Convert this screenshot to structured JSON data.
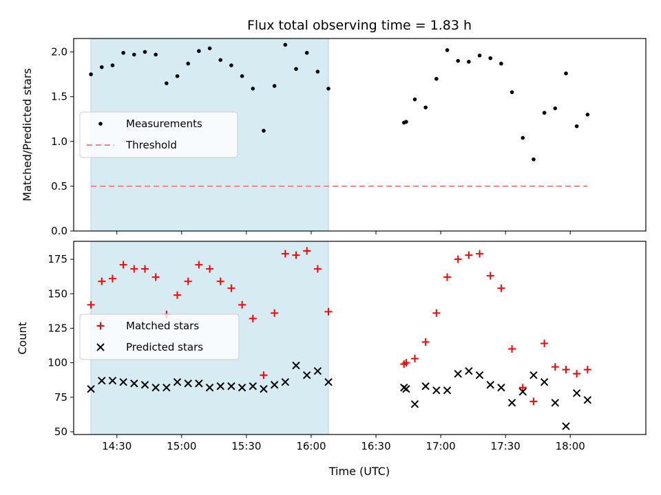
{
  "title": "Flux total observing time = 1.83 h",
  "colors": {
    "shade": "#add8e6",
    "measurement": "#000000",
    "threshold": "#ff7f7f",
    "matched": "#ff0000",
    "predicted": "#000000",
    "axes": "#000000"
  },
  "chart_data": [
    {
      "type": "scatter",
      "ylabel": "Matched/Predicted stars",
      "xlim": [
        "14:10",
        "18:35"
      ],
      "ylim": [
        0,
        2.15
      ],
      "y_ticks": [
        "0.0",
        "0.5",
        "1.0",
        "1.5",
        "2.0"
      ],
      "legend_position": "center-left",
      "shaded_interval": [
        "14:18",
        "16:08"
      ],
      "series": [
        {
          "name": "Measurements",
          "marker": "dot",
          "points": [
            [
              "14:18",
              1.75
            ],
            [
              "14:23",
              1.83
            ],
            [
              "14:28",
              1.85
            ],
            [
              "14:33",
              1.99
            ],
            [
              "14:38",
              1.97
            ],
            [
              "14:43",
              2.0
            ],
            [
              "14:48",
              1.97
            ],
            [
              "14:53",
              1.65
            ],
            [
              "14:58",
              1.73
            ],
            [
              "15:03",
              1.87
            ],
            [
              "15:08",
              2.01
            ],
            [
              "15:13",
              2.04
            ],
            [
              "15:18",
              1.91
            ],
            [
              "15:23",
              1.85
            ],
            [
              "15:28",
              1.73
            ],
            [
              "15:33",
              1.59
            ],
            [
              "15:38",
              1.12
            ],
            [
              "15:43",
              1.62
            ],
            [
              "15:48",
              2.08
            ],
            [
              "15:53",
              1.81
            ],
            [
              "15:58",
              1.99
            ],
            [
              "16:03",
              1.78
            ],
            [
              "16:08",
              1.59
            ],
            [
              "16:43",
              1.21
            ],
            [
              "16:44",
              1.22
            ],
            [
              "16:48",
              1.47
            ],
            [
              "16:53",
              1.38
            ],
            [
              "16:58",
              1.7
            ],
            [
              "17:03",
              2.02
            ],
            [
              "17:08",
              1.9
            ],
            [
              "17:13",
              1.89
            ],
            [
              "17:18",
              1.96
            ],
            [
              "17:23",
              1.93
            ],
            [
              "17:28",
              1.87
            ],
            [
              "17:33",
              1.55
            ],
            [
              "17:38",
              1.04
            ],
            [
              "17:43",
              0.8
            ],
            [
              "17:48",
              1.32
            ],
            [
              "17:53",
              1.37
            ],
            [
              "17:58",
              1.76
            ],
            [
              "18:03",
              1.17
            ],
            [
              "18:08",
              1.3
            ]
          ]
        },
        {
          "name": "Threshold",
          "style": "dashed",
          "x": [
            "14:18",
            "18:08"
          ],
          "values": [
            0.5,
            0.5
          ]
        }
      ]
    },
    {
      "type": "scatter",
      "xlabel": "Time (UTC)",
      "ylabel": "Count",
      "xlim": [
        "14:10",
        "18:35"
      ],
      "ylim": [
        48,
        188
      ],
      "y_ticks": [
        "50",
        "75",
        "100",
        "125",
        "150",
        "175"
      ],
      "x_ticks": [
        "14:30",
        "15:00",
        "15:30",
        "16:00",
        "16:30",
        "17:00",
        "17:30",
        "18:00"
      ],
      "legend_position": "center-left",
      "shaded_interval": [
        "14:18",
        "16:08"
      ],
      "series": [
        {
          "name": "Matched stars",
          "marker": "plus",
          "points": [
            [
              "14:18",
              142
            ],
            [
              "14:23",
              159
            ],
            [
              "14:28",
              161
            ],
            [
              "14:33",
              171
            ],
            [
              "14:38",
              168
            ],
            [
              "14:43",
              168
            ],
            [
              "14:48",
              162
            ],
            [
              "14:53",
              135
            ],
            [
              "14:58",
              149
            ],
            [
              "15:03",
              159
            ],
            [
              "15:08",
              171
            ],
            [
              "15:13",
              168
            ],
            [
              "15:18",
              159
            ],
            [
              "15:23",
              154
            ],
            [
              "15:28",
              142
            ],
            [
              "15:33",
              132
            ],
            [
              "15:38",
              91
            ],
            [
              "15:43",
              136
            ],
            [
              "15:48",
              179
            ],
            [
              "15:53",
              178
            ],
            [
              "15:58",
              181
            ],
            [
              "16:03",
              168
            ],
            [
              "16:08",
              137
            ],
            [
              "16:43",
              99
            ],
            [
              "16:44",
              100
            ],
            [
              "16:48",
              103
            ],
            [
              "16:53",
              115
            ],
            [
              "16:58",
              136
            ],
            [
              "17:03",
              162
            ],
            [
              "17:08",
              175
            ],
            [
              "17:13",
              178
            ],
            [
              "17:18",
              179
            ],
            [
              "17:23",
              163
            ],
            [
              "17:28",
              154
            ],
            [
              "17:33",
              110
            ],
            [
              "17:38",
              82
            ],
            [
              "17:43",
              72
            ],
            [
              "17:48",
              114
            ],
            [
              "17:53",
              97
            ],
            [
              "17:58",
              95
            ],
            [
              "18:03",
              92
            ],
            [
              "18:08",
              95
            ]
          ]
        },
        {
          "name": "Predicted stars",
          "marker": "x",
          "points": [
            [
              "14:18",
              81
            ],
            [
              "14:23",
              87
            ],
            [
              "14:28",
              87
            ],
            [
              "14:33",
              86
            ],
            [
              "14:38",
              85
            ],
            [
              "14:43",
              84
            ],
            [
              "14:48",
              82
            ],
            [
              "14:53",
              82
            ],
            [
              "14:58",
              86
            ],
            [
              "15:03",
              85
            ],
            [
              "15:08",
              85
            ],
            [
              "15:13",
              82
            ],
            [
              "15:18",
              83
            ],
            [
              "15:23",
              83
            ],
            [
              "15:28",
              82
            ],
            [
              "15:33",
              83
            ],
            [
              "15:38",
              81
            ],
            [
              "15:43",
              84
            ],
            [
              "15:48",
              86
            ],
            [
              "15:53",
              98
            ],
            [
              "15:58",
              91
            ],
            [
              "16:03",
              94
            ],
            [
              "16:08",
              86
            ],
            [
              "16:43",
              82
            ],
            [
              "16:44",
              81
            ],
            [
              "16:48",
              70
            ],
            [
              "16:53",
              83
            ],
            [
              "16:58",
              80
            ],
            [
              "17:03",
              80
            ],
            [
              "17:08",
              92
            ],
            [
              "17:13",
              94
            ],
            [
              "17:18",
              91
            ],
            [
              "17:23",
              84
            ],
            [
              "17:28",
              82
            ],
            [
              "17:33",
              71
            ],
            [
              "17:38",
              79
            ],
            [
              "17:43",
              91
            ],
            [
              "17:48",
              86
            ],
            [
              "17:53",
              71
            ],
            [
              "17:58",
              54
            ],
            [
              "18:03",
              78
            ],
            [
              "18:08",
              73
            ]
          ]
        }
      ]
    }
  ]
}
